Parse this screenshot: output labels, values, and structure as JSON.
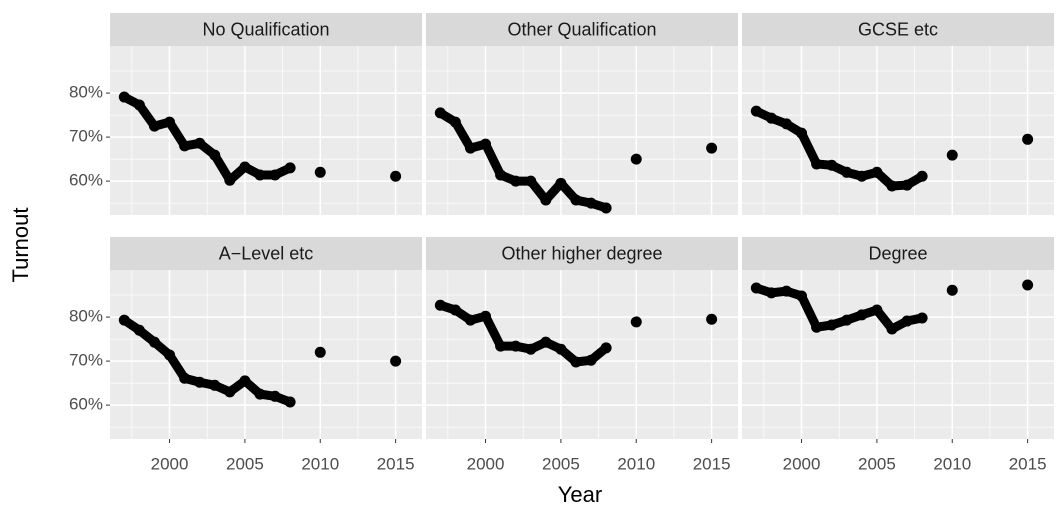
{
  "chart_data": {
    "type": "line",
    "xlabel": "Year",
    "ylabel": "Turnout",
    "color": "#000000",
    "grid": true,
    "x": [
      1997,
      1998,
      1999,
      2000,
      2001,
      2002,
      2003,
      2004,
      2005,
      2006,
      2007,
      2008,
      2009,
      2010,
      2011,
      2012,
      2013,
      2014,
      2015
    ],
    "xlim": [
      1996.05,
      2016.75
    ],
    "xticks": [
      2000,
      2005,
      2010,
      2015
    ],
    "ylim": [
      52.3,
      90.7
    ],
    "yticks": [
      {
        "value": 60,
        "label": "60%"
      },
      {
        "value": 70,
        "label": "70%"
      },
      {
        "value": 80,
        "label": "80%"
      }
    ],
    "facets": [
      {
        "title": "No Qualification",
        "values": [
          79.1,
          77.3,
          72.5,
          73.4,
          68.0,
          68.6,
          65.9,
          60.2,
          63.2,
          61.4,
          61.4,
          63.0,
          null,
          62.0,
          null,
          null,
          null,
          null,
          61.1
        ]
      },
      {
        "title": "Other Qualification",
        "values": [
          75.5,
          73.4,
          67.5,
          68.4,
          61.4,
          60.0,
          60.0,
          55.7,
          59.5,
          55.7,
          55.0,
          53.9,
          null,
          65.0,
          null,
          null,
          null,
          null,
          67.5
        ]
      },
      {
        "title": "GCSE etc",
        "values": [
          75.9,
          74.3,
          73.0,
          70.9,
          63.9,
          63.6,
          62.0,
          61.1,
          62.0,
          58.9,
          59.1,
          61.1,
          null,
          65.9,
          null,
          null,
          null,
          null,
          69.5
        ]
      },
      {
        "title": "A−Level etc",
        "values": [
          79.3,
          77.0,
          74.3,
          71.4,
          66.1,
          65.2,
          64.5,
          63.0,
          65.5,
          62.5,
          62.0,
          60.7,
          null,
          72.0,
          null,
          null,
          null,
          null,
          70.0
        ]
      },
      {
        "title": "Other higher degree",
        "values": [
          82.7,
          81.6,
          79.3,
          80.2,
          73.4,
          73.4,
          72.7,
          74.3,
          72.7,
          69.8,
          70.2,
          73.0,
          null,
          78.9,
          null,
          null,
          null,
          null,
          79.5
        ]
      },
      {
        "title": "Degree",
        "values": [
          86.6,
          85.5,
          85.9,
          84.8,
          77.7,
          78.2,
          79.3,
          80.5,
          81.6,
          77.3,
          79.1,
          79.8,
          null,
          86.1,
          null,
          null,
          null,
          null,
          87.3
        ]
      }
    ]
  }
}
